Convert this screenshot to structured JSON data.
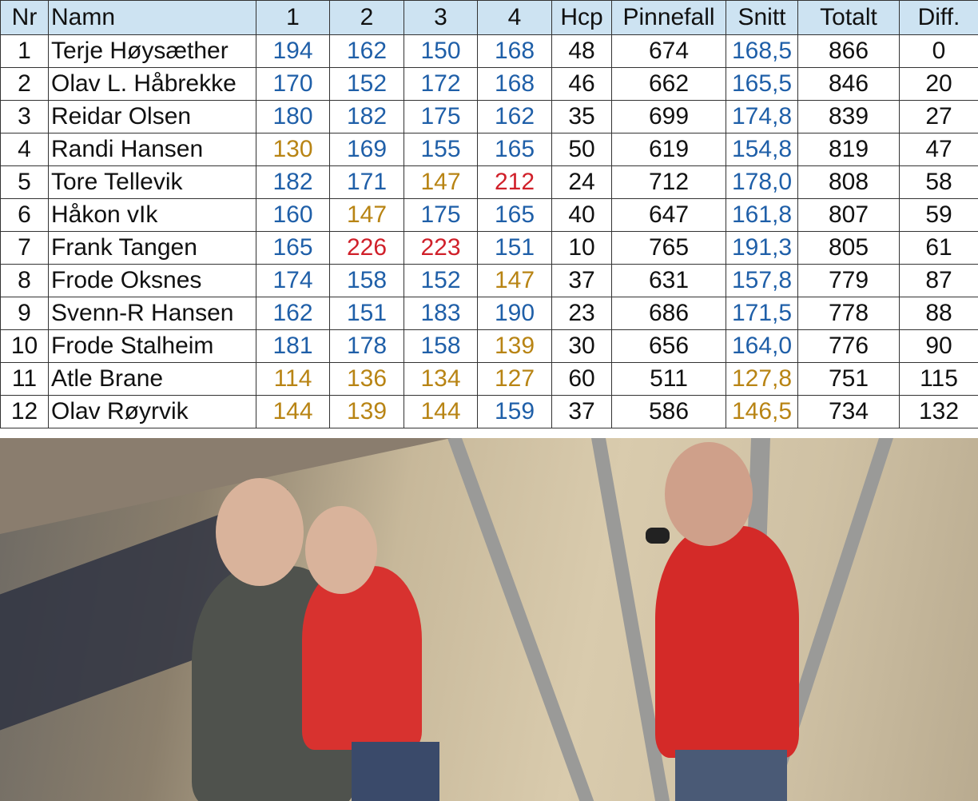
{
  "colors": {
    "blue": "#1f5fa8",
    "gold": "#b88414",
    "red": "#d0202a",
    "header_bg": "#cde3f2"
  },
  "headers": [
    "Nr",
    "Namn",
    "1",
    "2",
    "3",
    "4",
    "Hcp",
    "Pinnefall",
    "Snitt",
    "Totalt",
    "Diff."
  ],
  "rows": [
    {
      "nr": "1",
      "name": "Terje Høysæther",
      "scores": [
        {
          "v": "194",
          "c": "blue"
        },
        {
          "v": "162",
          "c": "blue"
        },
        {
          "v": "150",
          "c": "blue"
        },
        {
          "v": "168",
          "c": "blue"
        }
      ],
      "hcp": "48",
      "pins": "674",
      "avg": {
        "v": "168,5",
        "c": "blue"
      },
      "total": "866",
      "diff": "0"
    },
    {
      "nr": "2",
      "name": "Olav L. Håbrekke",
      "scores": [
        {
          "v": "170",
          "c": "blue"
        },
        {
          "v": "152",
          "c": "blue"
        },
        {
          "v": "172",
          "c": "blue"
        },
        {
          "v": "168",
          "c": "blue"
        }
      ],
      "hcp": "46",
      "pins": "662",
      "avg": {
        "v": "165,5",
        "c": "blue"
      },
      "total": "846",
      "diff": "20"
    },
    {
      "nr": "3",
      "name": "Reidar Olsen",
      "scores": [
        {
          "v": "180",
          "c": "blue"
        },
        {
          "v": "182",
          "c": "blue"
        },
        {
          "v": "175",
          "c": "blue"
        },
        {
          "v": "162",
          "c": "blue"
        }
      ],
      "hcp": "35",
      "pins": "699",
      "avg": {
        "v": "174,8",
        "c": "blue"
      },
      "total": "839",
      "diff": "27"
    },
    {
      "nr": "4",
      "name": "Randi Hansen",
      "scores": [
        {
          "v": "130",
          "c": "gold"
        },
        {
          "v": "169",
          "c": "blue"
        },
        {
          "v": "155",
          "c": "blue"
        },
        {
          "v": "165",
          "c": "blue"
        }
      ],
      "hcp": "50",
      "pins": "619",
      "avg": {
        "v": "154,8",
        "c": "blue"
      },
      "total": "819",
      "diff": "47"
    },
    {
      "nr": "5",
      "name": "Tore Tellevik",
      "scores": [
        {
          "v": "182",
          "c": "blue"
        },
        {
          "v": "171",
          "c": "blue"
        },
        {
          "v": "147",
          "c": "gold"
        },
        {
          "v": "212",
          "c": "red"
        }
      ],
      "hcp": "24",
      "pins": "712",
      "avg": {
        "v": "178,0",
        "c": "blue"
      },
      "total": "808",
      "diff": "58"
    },
    {
      "nr": "6",
      "name": "Håkon vIk",
      "scores": [
        {
          "v": "160",
          "c": "blue"
        },
        {
          "v": "147",
          "c": "gold"
        },
        {
          "v": "175",
          "c": "blue"
        },
        {
          "v": "165",
          "c": "blue"
        }
      ],
      "hcp": "40",
      "pins": "647",
      "avg": {
        "v": "161,8",
        "c": "blue"
      },
      "total": "807",
      "diff": "59"
    },
    {
      "nr": "7",
      "name": "Frank Tangen",
      "scores": [
        {
          "v": "165",
          "c": "blue"
        },
        {
          "v": "226",
          "c": "red"
        },
        {
          "v": "223",
          "c": "red"
        },
        {
          "v": "151",
          "c": "blue"
        }
      ],
      "hcp": "10",
      "pins": "765",
      "avg": {
        "v": "191,3",
        "c": "blue"
      },
      "total": "805",
      "diff": "61"
    },
    {
      "nr": "8",
      "name": "Frode Oksnes",
      "scores": [
        {
          "v": "174",
          "c": "blue"
        },
        {
          "v": "158",
          "c": "blue"
        },
        {
          "v": "152",
          "c": "blue"
        },
        {
          "v": "147",
          "c": "gold"
        }
      ],
      "hcp": "37",
      "pins": "631",
      "avg": {
        "v": "157,8",
        "c": "blue"
      },
      "total": "779",
      "diff": "87"
    },
    {
      "nr": "9",
      "name": "Svenn-R Hansen",
      "scores": [
        {
          "v": "162",
          "c": "blue"
        },
        {
          "v": "151",
          "c": "blue"
        },
        {
          "v": "183",
          "c": "blue"
        },
        {
          "v": "190",
          "c": "blue"
        }
      ],
      "hcp": "23",
      "pins": "686",
      "avg": {
        "v": "171,5",
        "c": "blue"
      },
      "total": "778",
      "diff": "88"
    },
    {
      "nr": "10",
      "name": "Frode Stalheim",
      "scores": [
        {
          "v": "181",
          "c": "blue"
        },
        {
          "v": "178",
          "c": "blue"
        },
        {
          "v": "158",
          "c": "blue"
        },
        {
          "v": "139",
          "c": "gold"
        }
      ],
      "hcp": "30",
      "pins": "656",
      "avg": {
        "v": "164,0",
        "c": "blue"
      },
      "total": "776",
      "diff": "90"
    },
    {
      "nr": "11",
      "name": "Atle Brane",
      "scores": [
        {
          "v": "114",
          "c": "gold"
        },
        {
          "v": "136",
          "c": "gold"
        },
        {
          "v": "134",
          "c": "gold"
        },
        {
          "v": "127",
          "c": "gold"
        }
      ],
      "hcp": "60",
      "pins": "511",
      "avg": {
        "v": "127,8",
        "c": "gold"
      },
      "total": "751",
      "diff": "115"
    },
    {
      "nr": "12",
      "name": "Olav Røyrvik",
      "scores": [
        {
          "v": "144",
          "c": "gold"
        },
        {
          "v": "139",
          "c": "gold"
        },
        {
          "v": "144",
          "c": "gold"
        },
        {
          "v": "159",
          "c": "blue"
        }
      ],
      "hcp": "37",
      "pins": "586",
      "avg": {
        "v": "146,5",
        "c": "gold"
      },
      "total": "734",
      "diff": "132"
    }
  ]
}
